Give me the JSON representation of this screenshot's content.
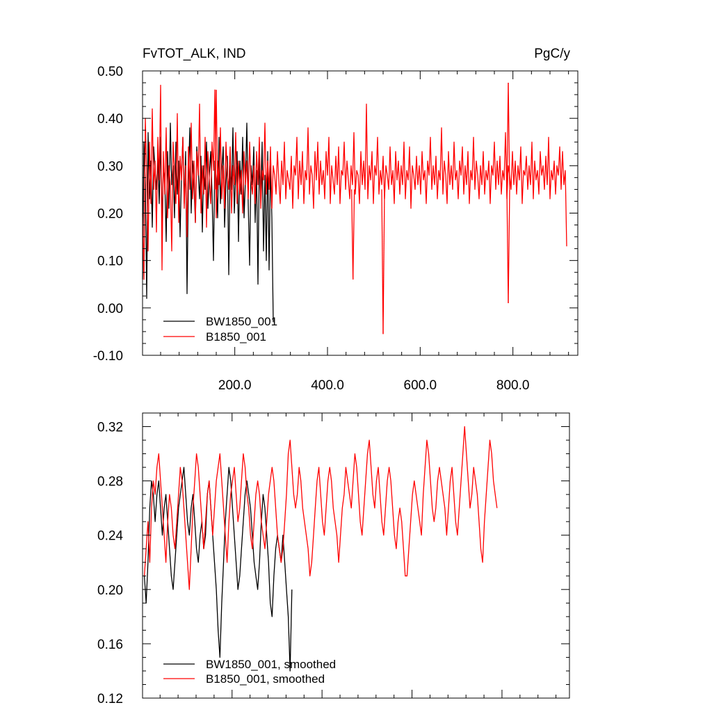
{
  "chart_data": [
    {
      "type": "line",
      "title_left": "FvTOT_ALK, IND",
      "title_right": "PgC/y",
      "xlim": [
        1,
        940
      ],
      "ylim": [
        -0.1,
        0.5
      ],
      "x_ticks": [
        200,
        400,
        600,
        800
      ],
      "x_tick_labels": [
        "200.0",
        "400.0",
        "600.0",
        "800.0"
      ],
      "y_ticks": [
        -0.1,
        0.0,
        0.1,
        0.2,
        0.3,
        0.4,
        0.5
      ],
      "y_tick_labels": [
        "-0.10",
        "0.00",
        "0.10",
        "0.20",
        "0.30",
        "0.40",
        "0.50"
      ],
      "legend_position": "bottom-left",
      "series": [
        {
          "name": "BW1850_001",
          "color": "#000000",
          "x_start": 1,
          "x_step": 3,
          "values": [
            0.06,
            0.35,
            0.26,
            0.02,
            0.37,
            0.23,
            0.31,
            0.17,
            0.34,
            0.29,
            0.25,
            0.32,
            0.22,
            0.36,
            0.18,
            0.3,
            0.27,
            0.14,
            0.33,
            0.21,
            0.39,
            0.26,
            0.3,
            0.19,
            0.35,
            0.24,
            0.31,
            0.15,
            0.28,
            0.36,
            0.22,
            0.33,
            0.03,
            0.27,
            0.38,
            0.2,
            0.31,
            0.26,
            0.18,
            0.34,
            0.29,
            0.23,
            0.32,
            0.16,
            0.3,
            0.25,
            0.35,
            0.21,
            0.28,
            0.33,
            0.24,
            0.1,
            0.31,
            0.27,
            0.19,
            0.36,
            0.22,
            0.29,
            0.34,
            0.17,
            0.26,
            0.32,
            0.07,
            0.3,
            0.25,
            0.38,
            0.2,
            0.28,
            0.33,
            0.14,
            0.31,
            0.24,
            0.36,
            0.19,
            0.27,
            0.39,
            0.22,
            0.09,
            0.3,
            0.26,
            0.34,
            0.18,
            0.29,
            0.05,
            0.32,
            0.23,
            0.35,
            0.12,
            0.28,
            0.1,
            0.33,
            0.08,
            0.3,
            0.19,
            -0.03
          ]
        },
        {
          "name": "B1850_001",
          "color": "#ff0000",
          "x_start": 1,
          "x_step": 3,
          "values": [
            0.2,
            0.06,
            0.4,
            0.28,
            0.12,
            0.35,
            0.22,
            0.42,
            0.25,
            0.31,
            0.16,
            0.36,
            0.27,
            0.47,
            0.08,
            0.33,
            0.24,
            0.38,
            0.19,
            0.3,
            0.26,
            0.12,
            0.35,
            0.29,
            0.22,
            0.41,
            0.18,
            0.32,
            0.27,
            0.36,
            0.21,
            0.3,
            0.15,
            0.34,
            0.25,
            0.39,
            0.23,
            0.31,
            0.18,
            0.33,
            0.28,
            0.43,
            0.2,
            0.3,
            0.24,
            0.36,
            0.17,
            0.33,
            0.27,
            0.22,
            0.35,
            0.29,
            0.46,
            0.19,
            0.31,
            0.26,
            0.38,
            0.23,
            0.3,
            0.21,
            0.35,
            0.28,
            0.25,
            0.34,
            0.2,
            0.3,
            0.26,
            0.37,
            0.22,
            0.31,
            0.24,
            0.29,
            0.2,
            0.33,
            0.26,
            0.31,
            0.23,
            0.35,
            0.27,
            0.24,
            0.3,
            0.22,
            0.33,
            0.26,
            0.36,
            0.21,
            0.29,
            0.27,
            0.39,
            0.24,
            0.31,
            0.25,
            0.34,
            0.21,
            0.3,
            0.28,
            0.24,
            0.33,
            0.27,
            0.22,
            0.31,
            0.26,
            0.35,
            0.23,
            0.29,
            0.27,
            0.25,
            0.32,
            0.21,
            0.3,
            0.28,
            0.36,
            0.23,
            0.31,
            0.26,
            0.33,
            0.22,
            0.29,
            0.27,
            0.38,
            0.24,
            0.3,
            0.28,
            0.21,
            0.33,
            0.27,
            0.35,
            0.24,
            0.31,
            0.26,
            0.29,
            0.23,
            0.33,
            0.28,
            0.36,
            0.22,
            0.3,
            0.27,
            0.24,
            0.32,
            0.26,
            0.34,
            0.22,
            0.29,
            0.28,
            0.35,
            0.25,
            0.31,
            0.27,
            0.23,
            0.3,
            0.26,
            0.37,
            0.24,
            0.29,
            0.28,
            0.22,
            0.33,
            0.26,
            0.31,
            0.25,
            0.43,
            0.23,
            0.3,
            0.27,
            0.33,
            0.22,
            0.3,
            0.28,
            0.36,
            0.24,
            0.29,
            0.26,
            0.32,
            0.23,
            0.3,
            0.28,
            0.25,
            0.34,
            0.26,
            0.29,
            0.22,
            0.33,
            0.27,
            0.31,
            0.24,
            0.3,
            0.26,
            0.35,
            0.23,
            0.29,
            0.27,
            0.34,
            0.21,
            0.3,
            0.28,
            0.25,
            0.32,
            0.26,
            0.3,
            0.24,
            0.33,
            0.27,
            0.29,
            0.22,
            0.31,
            0.28,
            0.36,
            0.25,
            0.3,
            0.26,
            0.32,
            0.23,
            0.29,
            0.27,
            0.38,
            0.24,
            0.31,
            0.28,
            0.22,
            0.33,
            0.26,
            0.3,
            0.25,
            0.35,
            0.27,
            0.29,
            0.23,
            0.31,
            0.28,
            0.34,
            0.24,
            0.3,
            0.26,
            0.33,
            0.22,
            0.29,
            0.27,
            0.36,
            0.25,
            0.31,
            0.28,
            0.23,
            0.3,
            0.26,
            0.33,
            0.24,
            0.29,
            0.27,
            0.31,
            0.22,
            0.3,
            0.28,
            0.35,
            0.25,
            0.31,
            0.26,
            0.32,
            0.24,
            0.29,
            0.27,
            0.37,
            0.23,
            0.3,
            0.28,
            0.25,
            0.33,
            0.26,
            0.31,
            0.24,
            0.3,
            0.27,
            0.34,
            0.22,
            0.29,
            0.28,
            0.32,
            0.25,
            0.3,
            0.26,
            0.35,
            0.23,
            0.31,
            0.27,
            0.29,
            0.24,
            0.33,
            0.28,
            0.3,
            0.25,
            0.32,
            0.26,
            0.36,
            0.23,
            0.29,
            0.27,
            0.31,
            0.24,
            0.3,
            0.28,
            0.34,
            0.25,
            0.33,
            0.26,
            0.29,
            0.13
          ]
        }
      ],
      "events": [
        {
          "series": 1,
          "x": 520,
          "y": -0.055
        },
        {
          "series": 1,
          "x": 455,
          "y": 0.06
        },
        {
          "series": 1,
          "x": 790,
          "y": 0.475
        },
        {
          "series": 1,
          "x": 790,
          "y": 0.01
        },
        {
          "series": 1,
          "x": 160,
          "y": 0.46
        }
      ]
    },
    {
      "type": "line",
      "xlim": [
        1,
        950
      ],
      "ylim": [
        0.12,
        0.33
      ],
      "x_ticks": [
        200,
        400,
        600,
        800
      ],
      "y_ticks": [
        0.12,
        0.16,
        0.2,
        0.24,
        0.28,
        0.32
      ],
      "y_tick_labels": [
        "0.12",
        "0.16",
        "0.20",
        "0.24",
        "0.28",
        "0.32"
      ],
      "legend_position": "bottom-left",
      "series": [
        {
          "name": "BW1850_001, smoothed",
          "color": "#000000",
          "x_start": 5,
          "x_step": 4,
          "values": [
            0.21,
            0.19,
            0.22,
            0.26,
            0.28,
            0.27,
            0.25,
            0.27,
            0.28,
            0.26,
            0.24,
            0.26,
            0.27,
            0.25,
            0.23,
            0.21,
            0.2,
            0.22,
            0.24,
            0.26,
            0.27,
            0.28,
            0.29,
            0.27,
            0.25,
            0.24,
            0.26,
            0.27,
            0.25,
            0.23,
            0.22,
            0.24,
            0.25,
            0.23,
            0.24,
            0.27,
            0.28,
            0.26,
            0.24,
            0.22,
            0.2,
            0.17,
            0.15,
            0.19,
            0.22,
            0.25,
            0.27,
            0.29,
            0.28,
            0.26,
            0.24,
            0.22,
            0.2,
            0.21,
            0.23,
            0.25,
            0.27,
            0.28,
            0.27,
            0.26,
            0.24,
            0.22,
            0.21,
            0.2,
            0.22,
            0.25,
            0.27,
            0.26,
            0.24,
            0.22,
            0.19,
            0.18,
            0.21,
            0.23,
            0.24,
            0.23,
            0.22,
            0.24,
            0.22,
            0.2,
            0.18,
            0.14,
            0.2
          ]
        },
        {
          "name": "B1850_001, smoothed",
          "color": "#ff0000",
          "x_start": 5,
          "x_step": 4,
          "values": [
            0.21,
            0.23,
            0.25,
            0.22,
            0.26,
            0.28,
            0.27,
            0.29,
            0.3,
            0.28,
            0.26,
            0.24,
            0.22,
            0.25,
            0.27,
            0.26,
            0.24,
            0.23,
            0.25,
            0.27,
            0.29,
            0.28,
            0.26,
            0.24,
            0.22,
            0.2,
            0.23,
            0.26,
            0.28,
            0.3,
            0.29,
            0.27,
            0.25,
            0.23,
            0.25,
            0.27,
            0.28,
            0.26,
            0.24,
            0.26,
            0.28,
            0.29,
            0.3,
            0.28,
            0.26,
            0.24,
            0.22,
            0.25,
            0.27,
            0.28,
            0.29,
            0.27,
            0.25,
            0.26,
            0.28,
            0.3,
            0.29,
            0.27,
            0.26,
            0.24,
            0.23,
            0.25,
            0.27,
            0.28,
            0.27,
            0.25,
            0.24,
            0.23,
            0.25,
            0.27,
            0.28,
            0.29,
            0.28,
            0.26,
            0.24,
            0.23,
            0.22,
            0.23,
            0.25,
            0.27,
            0.3,
            0.31,
            0.29,
            0.27,
            0.26,
            0.27,
            0.29,
            0.28,
            0.26,
            0.25,
            0.24,
            0.23,
            0.21,
            0.22,
            0.24,
            0.26,
            0.28,
            0.29,
            0.27,
            0.25,
            0.24,
            0.26,
            0.28,
            0.29,
            0.28,
            0.26,
            0.25,
            0.24,
            0.22,
            0.24,
            0.26,
            0.27,
            0.29,
            0.28,
            0.27,
            0.26,
            0.28,
            0.3,
            0.29,
            0.27,
            0.25,
            0.24,
            0.26,
            0.28,
            0.3,
            0.31,
            0.29,
            0.27,
            0.26,
            0.28,
            0.29,
            0.27,
            0.25,
            0.24,
            0.26,
            0.28,
            0.29,
            0.28,
            0.26,
            0.24,
            0.23,
            0.25,
            0.26,
            0.25,
            0.23,
            0.21,
            0.21,
            0.23,
            0.25,
            0.27,
            0.28,
            0.27,
            0.26,
            0.25,
            0.24,
            0.27,
            0.29,
            0.31,
            0.3,
            0.28,
            0.26,
            0.25,
            0.26,
            0.28,
            0.29,
            0.28,
            0.27,
            0.26,
            0.24,
            0.26,
            0.28,
            0.29,
            0.27,
            0.25,
            0.24,
            0.26,
            0.28,
            0.3,
            0.32,
            0.3,
            0.28,
            0.26,
            0.27,
            0.29,
            0.28,
            0.27,
            0.25,
            0.23,
            0.22,
            0.25,
            0.27,
            0.29,
            0.31,
            0.3,
            0.28,
            0.27,
            0.26
          ]
        }
      ]
    }
  ]
}
